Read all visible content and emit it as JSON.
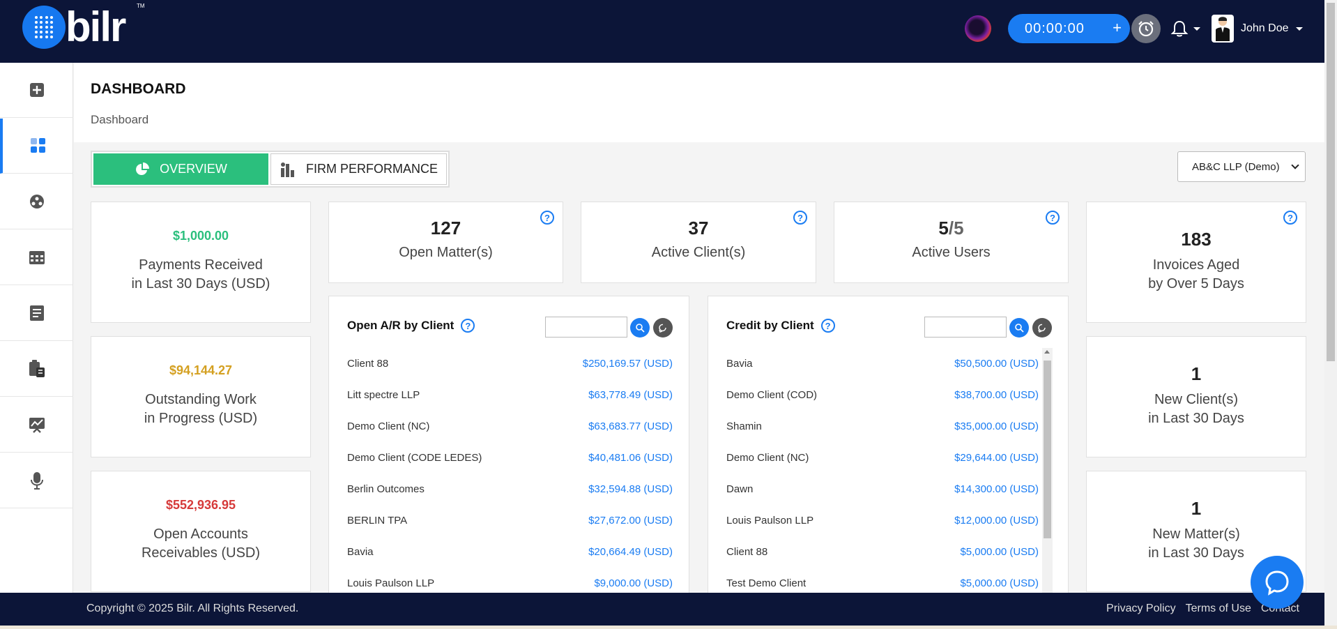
{
  "app": {
    "logo_text": "bilr",
    "logo_tm": "TM"
  },
  "topbar": {
    "timer": "00:00:00",
    "timer_plus": "+",
    "user_name": "John Doe"
  },
  "header": {
    "title": "DASHBOARD",
    "breadcrumb": "Dashboard"
  },
  "tabs": {
    "overview": "OVERVIEW",
    "firm_performance": "FIRM PERFORMANCE"
  },
  "firm_select": {
    "value": "AB&C LLP (Demo)"
  },
  "left_cards": [
    {
      "amount": "$1,000.00",
      "line1": "Payments Received",
      "line2": "in Last 30 Days (USD)",
      "color": "#2bbf7d"
    },
    {
      "amount": "$94,144.27",
      "line1": "Outstanding Work",
      "line2": "in Progress (USD)",
      "color": "#d4a021"
    },
    {
      "amount": "$552,936.95",
      "line1": "Open Accounts",
      "line2": "Receivables (USD)",
      "color": "#d63a3a"
    }
  ],
  "stats": [
    {
      "value": "127",
      "label": "Open Matter(s)"
    },
    {
      "value": "37",
      "label": "Active Client(s)"
    },
    {
      "value_main": "5",
      "value_sep": "/5",
      "label": "Active Users"
    }
  ],
  "right_cards": [
    {
      "value": "183",
      "line1": "Invoices Aged",
      "line2": "by Over 5 Days"
    },
    {
      "value": "1",
      "line1": "New Client(s)",
      "line2": "in Last 30 Days"
    },
    {
      "value": "1",
      "line1": "New Matter(s)",
      "line2": "in Last 30 Days"
    }
  ],
  "help_symbol": "?",
  "open_ar": {
    "title": "Open A/R by Client",
    "rows": [
      {
        "name": "Client 88",
        "value": "$250,169.57 (USD)"
      },
      {
        "name": "Litt spectre LLP",
        "value": "$63,778.49 (USD)"
      },
      {
        "name": "Demo Client (NC)",
        "value": "$63,683.77 (USD)"
      },
      {
        "name": "Demo Client (CODE LEDES)",
        "value": "$40,481.06 (USD)"
      },
      {
        "name": "Berlin Outcomes",
        "value": "$32,594.88 (USD)"
      },
      {
        "name": "BERLIN TPA",
        "value": "$27,672.00 (USD)"
      },
      {
        "name": "Bavia",
        "value": "$20,664.49 (USD)"
      },
      {
        "name": "Louis Paulson LLP",
        "value": "$9,000.00 (USD)"
      }
    ]
  },
  "credit": {
    "title": "Credit by Client",
    "rows": [
      {
        "name": "Bavia",
        "value": "$50,500.00 (USD)"
      },
      {
        "name": "Demo Client (COD)",
        "value": "$38,700.00 (USD)"
      },
      {
        "name": "Shamin",
        "value": "$35,000.00 (USD)"
      },
      {
        "name": "Demo Client (NC)",
        "value": "$29,644.00 (USD)"
      },
      {
        "name": "Dawn",
        "value": "$14,300.00 (USD)"
      },
      {
        "name": "Louis Paulson LLP",
        "value": "$12,000.00 (USD)"
      },
      {
        "name": "Client 88",
        "value": "$5,000.00 (USD)"
      },
      {
        "name": "Test Demo Client",
        "value": "$5,000.00 (USD)"
      }
    ]
  },
  "footer": {
    "copyright": "Copyright © 2025 Bilr. All Rights Reserved.",
    "privacy": "Privacy Policy",
    "terms": "Terms of Use",
    "contact": "Contact"
  },
  "sidebar_icons": [
    "add-icon",
    "dashboard-icon",
    "clients-icon",
    "calendar-icon",
    "billing-icon",
    "documents-icon",
    "reports-icon",
    "microphone-icon"
  ]
}
